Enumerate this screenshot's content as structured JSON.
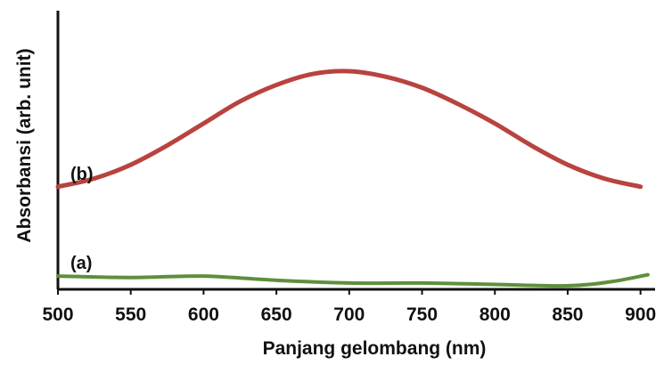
{
  "chart_data": {
    "type": "line",
    "xlabel": "Panjang gelombang (nm)",
    "ylabel": "Absorbansi (arb. unit)",
    "xlim": [
      500,
      910
    ],
    "ylim": [
      0,
      1
    ],
    "x_ticks": [
      500,
      550,
      600,
      650,
      700,
      750,
      800,
      850,
      900
    ],
    "y_ticks_shown": false,
    "grid": false,
    "series": [
      {
        "name": "(b)",
        "color": "#b8433f",
        "x": [
          500,
          525,
          550,
          575,
          600,
          625,
          650,
          675,
          700,
          725,
          750,
          775,
          800,
          825,
          850,
          875,
          900
        ],
        "y": [
          0.36,
          0.39,
          0.44,
          0.51,
          0.59,
          0.67,
          0.73,
          0.77,
          0.78,
          0.76,
          0.72,
          0.66,
          0.59,
          0.51,
          0.44,
          0.39,
          0.36
        ]
      },
      {
        "name": "(a)",
        "color": "#5f8f3a",
        "x": [
          500,
          550,
          600,
          650,
          700,
          750,
          800,
          850,
          880,
          905
        ],
        "y": [
          0.035,
          0.03,
          0.035,
          0.02,
          0.01,
          0.01,
          0.005,
          0.0,
          0.015,
          0.04
        ]
      }
    ]
  }
}
